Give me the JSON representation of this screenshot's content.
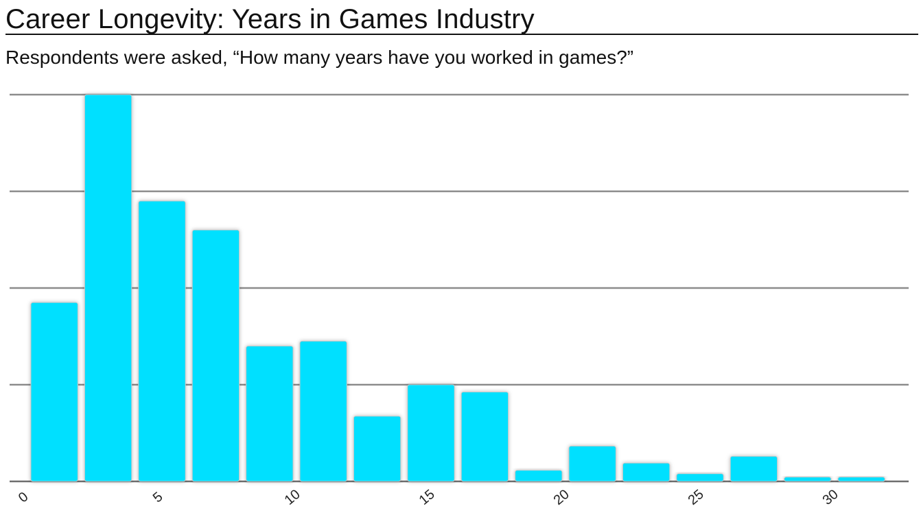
{
  "header": {
    "title": "Career Longevity: Years in Games Industry",
    "subtitle": "Respondents were asked, “How many years have you worked in games?”"
  },
  "colors": {
    "bar": "#00E0FF",
    "grid": "#8C8C8C",
    "text": "#111111"
  },
  "chart_data": {
    "type": "bar",
    "title": "Career Longevity: Years in Games Industry",
    "subtitle": "Respondents were asked, “How many years have you worked in games?”",
    "xlabel": "",
    "ylabel": "",
    "x_ticks": [
      0,
      5,
      10,
      15,
      20,
      25,
      30
    ],
    "x_range": [
      0,
      32
    ],
    "bin_width": 2,
    "bins": [
      {
        "start": 0,
        "value": 37
      },
      {
        "start": 2,
        "value": 80
      },
      {
        "start": 4,
        "value": 58
      },
      {
        "start": 6,
        "value": 52
      },
      {
        "start": 8,
        "value": 28
      },
      {
        "start": 10,
        "value": 29
      },
      {
        "start": 12,
        "value": 13.5
      },
      {
        "start": 14,
        "value": 20
      },
      {
        "start": 16,
        "value": 18.5
      },
      {
        "start": 18,
        "value": 2.3
      },
      {
        "start": 20,
        "value": 7.3
      },
      {
        "start": 22,
        "value": 3.8
      },
      {
        "start": 24,
        "value": 1.6
      },
      {
        "start": 26,
        "value": 5.2
      },
      {
        "start": 28,
        "value": 0.9
      },
      {
        "start": 30,
        "value": 0.9
      }
    ],
    "ylim": [
      0,
      80
    ],
    "gridlines": [
      0,
      20,
      40,
      60,
      80
    ],
    "y_tick_labels_shown": false,
    "grid": true,
    "legend": "none"
  }
}
